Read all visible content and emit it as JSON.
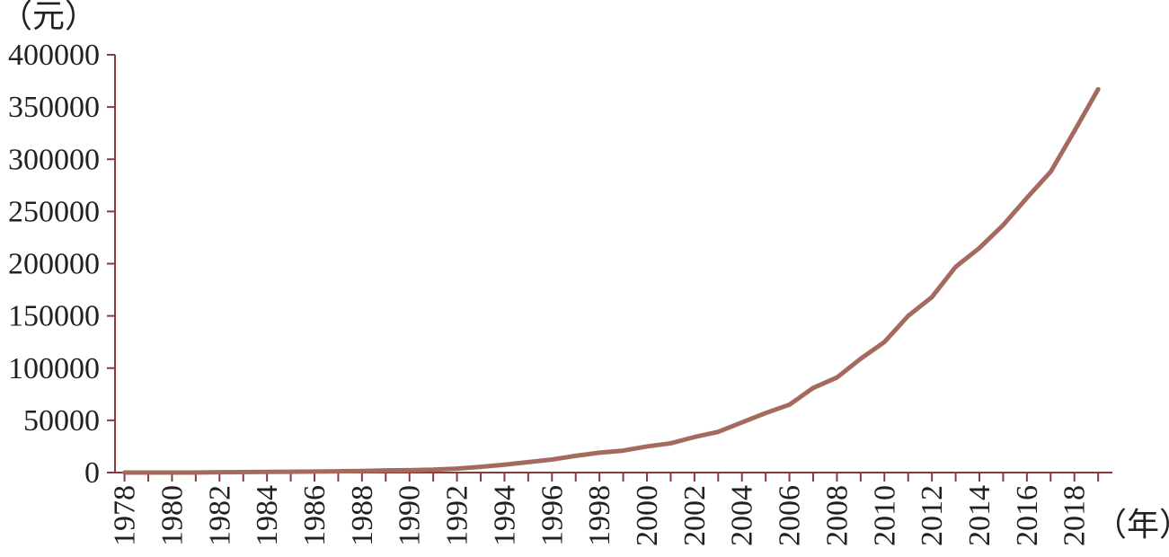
{
  "chart_data": {
    "type": "line",
    "y_unit_label": "（元）",
    "x_unit_label": "（年）",
    "ylim": [
      0,
      400000
    ],
    "y_ticks": [
      0,
      50000,
      100000,
      150000,
      200000,
      250000,
      300000,
      350000,
      400000
    ],
    "y_tick_labels": [
      "0",
      "50000",
      "100000",
      "150000",
      "200000",
      "250000",
      "300000",
      "350000",
      "400000"
    ],
    "x_tick_labels": [
      "1978",
      "1980",
      "1982",
      "1984",
      "1986",
      "1988",
      "1990",
      "1992",
      "1994",
      "1996",
      "1998",
      "2000",
      "2002",
      "2004",
      "2006",
      "2008",
      "2010",
      "2012",
      "2014",
      "2016",
      "2018"
    ],
    "grid": false,
    "line_color": "#a56a5e",
    "axis_color": "#8b3a3a",
    "series": [
      {
        "x": [
          1978,
          1979,
          1980,
          1981,
          1982,
          1983,
          1984,
          1985,
          1986,
          1987,
          1988,
          1989,
          1990,
          1991,
          1992,
          1993,
          1994,
          1995,
          1996,
          1997,
          1998,
          1999,
          2000,
          2001,
          2002,
          2003,
          2004,
          2005,
          2006,
          2007,
          2008,
          2009,
          2010,
          2011,
          2012,
          2013,
          2014,
          2015,
          2016,
          2017,
          2018,
          2019
        ],
        "values": [
          0,
          0,
          0,
          0,
          300,
          400,
          600,
          800,
          1000,
          1200,
          1500,
          2000,
          2300,
          2800,
          3800,
          5500,
          7500,
          10000,
          12500,
          16000,
          19000,
          21000,
          25000,
          28000,
          34000,
          39000,
          48000,
          57000,
          65000,
          81000,
          91000,
          109000,
          125000,
          150000,
          168000,
          197000,
          215000,
          237000,
          263000,
          288000,
          327000,
          367000
        ]
      }
    ]
  }
}
